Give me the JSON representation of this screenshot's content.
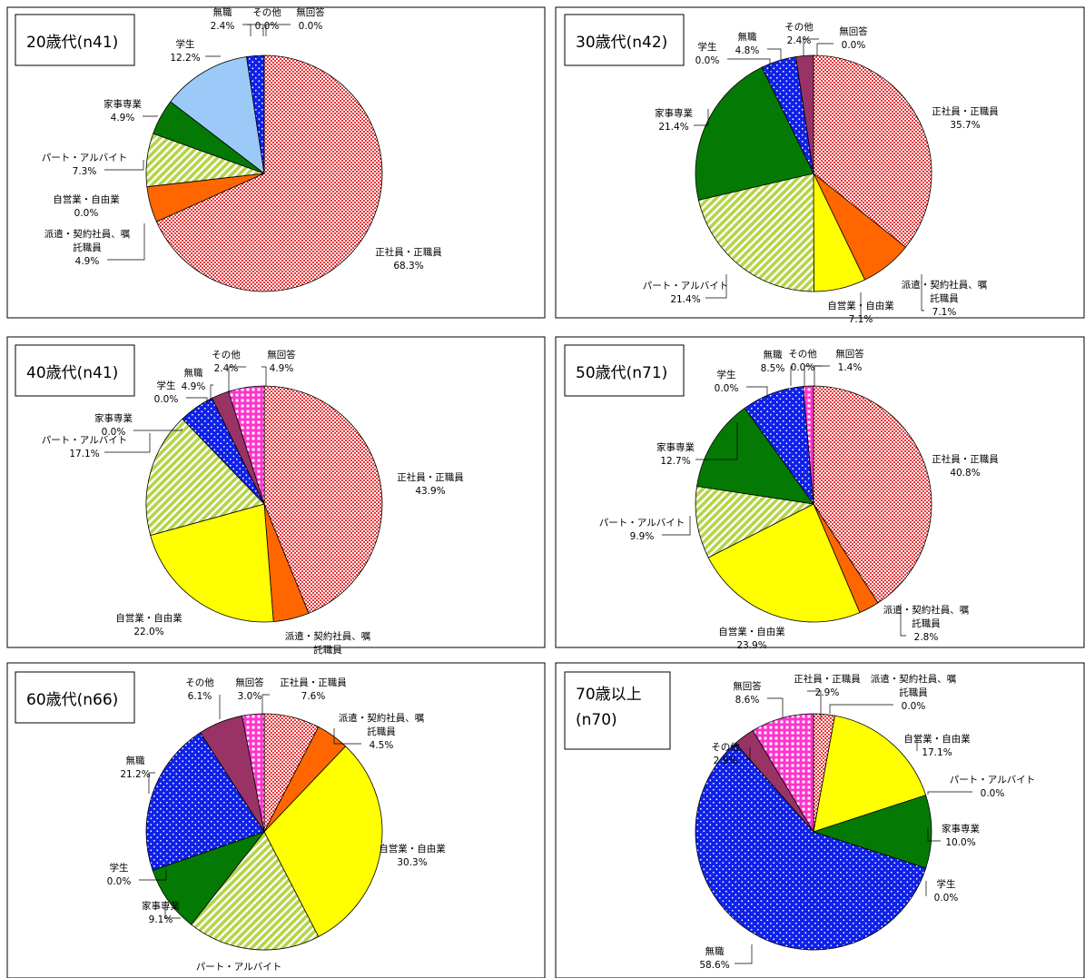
{
  "chart_data": [
    {
      "type": "pie",
      "title_lines": [
        "20歳代(n41)"
      ],
      "categories": [
        "正社員・正職員",
        "派遣・契約社員、嘱託職員",
        "自営業・自由業",
        "パート・アルバイト",
        "家事専業",
        "学生",
        "無職",
        "その他",
        "無回答"
      ],
      "values": [
        68.3,
        4.9,
        0.0,
        7.3,
        4.9,
        12.2,
        2.4,
        0.0,
        0.0
      ],
      "labels": [
        {
          "lines": [
            "正社員・正職員",
            "68.3%"
          ]
        },
        {
          "lines": [
            "派遣・契約社員、嘱",
            "託職員",
            "4.9%"
          ]
        },
        {
          "lines": [
            "自営業・自由業",
            "0.0%"
          ]
        },
        {
          "lines": [
            "パート・アルバイト",
            "7.3%"
          ]
        },
        {
          "lines": [
            "家事専業",
            "4.9%"
          ]
        },
        {
          "lines": [
            "学生",
            "12.2%"
          ]
        },
        {
          "lines": [
            "無職",
            "2.4%"
          ]
        },
        {
          "lines": [
            "その他",
            "0.0%"
          ]
        },
        {
          "lines": [
            "無回答",
            "0.0%"
          ]
        }
      ]
    },
    {
      "type": "pie",
      "title_lines": [
        "30歳代(n42)"
      ],
      "categories": [
        "正社員・正職員",
        "派遣・契約社員、嘱託職員",
        "自営業・自由業",
        "パート・アルバイト",
        "家事専業",
        "学生",
        "無職",
        "その他",
        "無回答"
      ],
      "values": [
        35.7,
        7.1,
        7.1,
        21.4,
        21.4,
        0.0,
        4.8,
        2.4,
        0.0
      ],
      "labels": [
        {
          "lines": [
            "正社員・正職員",
            "35.7%"
          ]
        },
        {
          "lines": [
            "派遣・契約社員、嘱",
            "託職員",
            "7.1%"
          ]
        },
        {
          "lines": [
            "自営業・自由業",
            "7.1%"
          ]
        },
        {
          "lines": [
            "パート・アルバイト",
            "21.4%"
          ]
        },
        {
          "lines": [
            "家事専業",
            "21.4%"
          ]
        },
        {
          "lines": [
            "学生",
            "0.0%"
          ]
        },
        {
          "lines": [
            "無職",
            "4.8%"
          ]
        },
        {
          "lines": [
            "その他",
            "2.4%"
          ]
        },
        {
          "lines": [
            "無回答",
            "0.0%"
          ]
        }
      ]
    },
    {
      "type": "pie",
      "title_lines": [
        "40歳代(n41)"
      ],
      "categories": [
        "正社員・正職員",
        "派遣・契約社員、嘱託職員",
        "自営業・自由業",
        "パート・アルバイト",
        "家事専業",
        "学生",
        "無職",
        "その他",
        "無回答"
      ],
      "values": [
        43.9,
        4.9,
        22.0,
        17.1,
        0.0,
        0.0,
        4.9,
        2.4,
        4.9
      ],
      "labels": [
        {
          "lines": [
            "正社員・正職員",
            "43.9%"
          ]
        },
        {
          "lines": [
            "派遣・契約社員、嘱",
            "託職員"
          ]
        },
        {
          "lines": [
            "自営業・自由業",
            "22.0%"
          ]
        },
        {
          "lines": [
            "パート・アルバイト",
            "17.1%"
          ]
        },
        {
          "lines": [
            "家事専業",
            "0.0%"
          ]
        },
        {
          "lines": [
            "学生",
            "0.0%"
          ]
        },
        {
          "lines": [
            "無職",
            "4.9%"
          ]
        },
        {
          "lines": [
            "その他",
            "2.4%"
          ]
        },
        {
          "lines": [
            "無回答",
            "4.9%"
          ]
        }
      ]
    },
    {
      "type": "pie",
      "title_lines": [
        "50歳代(n71)"
      ],
      "categories": [
        "正社員・正職員",
        "派遣・契約社員、嘱託職員",
        "自営業・自由業",
        "パート・アルバイト",
        "家事専業",
        "学生",
        "無職",
        "その他",
        "無回答"
      ],
      "values": [
        40.8,
        2.8,
        23.9,
        9.9,
        12.7,
        0.0,
        8.5,
        0.0,
        1.4
      ],
      "labels": [
        {
          "lines": [
            "正社員・正職員",
            "40.8%"
          ]
        },
        {
          "lines": [
            "派遣・契約社員、嘱",
            "託職員",
            "2.8%"
          ]
        },
        {
          "lines": [
            "自営業・自由業",
            "23.9%"
          ]
        },
        {
          "lines": [
            "パート・アルバイト",
            "9.9%"
          ]
        },
        {
          "lines": [
            "家事専業",
            "12.7%"
          ]
        },
        {
          "lines": [
            "学生",
            "0.0%"
          ]
        },
        {
          "lines": [
            "無職",
            "8.5%"
          ]
        },
        {
          "lines": [
            "その他",
            "0.0%"
          ]
        },
        {
          "lines": [
            "無回答",
            "1.4%"
          ]
        }
      ]
    },
    {
      "type": "pie",
      "title_lines": [
        "60歳代(n66)"
      ],
      "categories": [
        "正社員・正職員",
        "派遣・契約社員、嘱託職員",
        "自営業・自由業",
        "パート・アルバイト",
        "家事専業",
        "学生",
        "無職",
        "その他",
        "無回答"
      ],
      "values": [
        7.6,
        4.5,
        30.3,
        18.2,
        9.1,
        0.0,
        21.2,
        6.1,
        3.0
      ],
      "labels": [
        {
          "lines": [
            "正社員・正職員",
            "7.6%"
          ]
        },
        {
          "lines": [
            "派遣・契約社員、嘱",
            "託職員",
            "4.5%"
          ]
        },
        {
          "lines": [
            "自営業・自由業",
            "30.3%"
          ]
        },
        {
          "lines": [
            "パート・アルバイト"
          ]
        },
        {
          "lines": [
            "家事専業",
            "9.1%"
          ]
        },
        {
          "lines": [
            "学生",
            "0.0%"
          ]
        },
        {
          "lines": [
            "無職",
            "21.2%"
          ]
        },
        {
          "lines": [
            "その他",
            "6.1%"
          ]
        },
        {
          "lines": [
            "無回答",
            "3.0%"
          ]
        }
      ]
    },
    {
      "type": "pie",
      "title_lines": [
        "70歳以上",
        "(n70)"
      ],
      "categories": [
        "正社員・正職員",
        "派遣・契約社員、嘱託職員",
        "自営業・自由業",
        "パート・アルバイト",
        "家事専業",
        "学生",
        "無職",
        "その他",
        "無回答"
      ],
      "values": [
        2.9,
        0.0,
        17.1,
        0.0,
        10.0,
        0.0,
        58.6,
        2.9,
        8.6
      ],
      "labels": [
        {
          "lines": [
            "正社員・正職員",
            "2.9%"
          ]
        },
        {
          "lines": [
            "派遣・契約社員、嘱",
            "託職員",
            "0.0%"
          ]
        },
        {
          "lines": [
            "自営業・自由業",
            "17.1%"
          ]
        },
        {
          "lines": [
            "パート・アルバイト",
            "0.0%"
          ]
        },
        {
          "lines": [
            "家事専業",
            "10.0%"
          ]
        },
        {
          "lines": [
            "学生",
            "0.0%"
          ]
        },
        {
          "lines": [
            "無職",
            "58.6%"
          ]
        },
        {
          "lines": [
            "その他",
            "2.9%"
          ]
        },
        {
          "lines": [
            "無回答",
            "8.6%"
          ]
        }
      ]
    }
  ],
  "colors": {
    "正社員・正職員": "#e8373a",
    "派遣・契約社員、嘱託職員": "#ff6600",
    "自営業・自由業": "#ffff00",
    "パート・アルバイト": "#b5d449",
    "家事専業": "#047a04",
    "学生": "#9ccaf8",
    "無職": "#0f21e8",
    "その他": "#993366",
    "無回答": "#ff33cc"
  }
}
